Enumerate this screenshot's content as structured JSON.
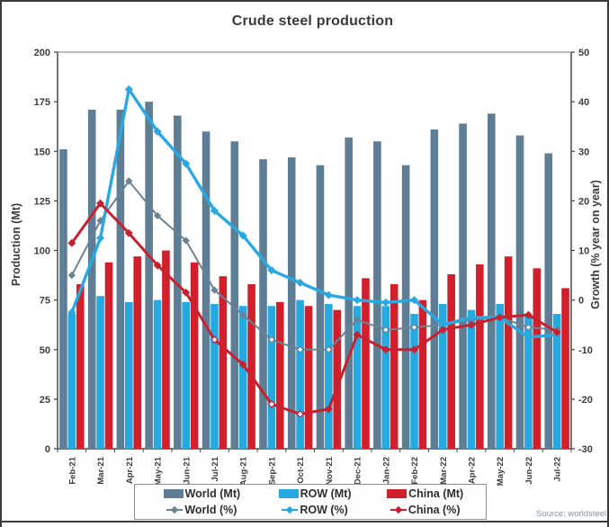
{
  "title": "Crude steel production",
  "source": "Source: worldsteel",
  "chart_data": {
    "type": "bar+line",
    "title": "Crude steel production",
    "categories": [
      "Feb-21",
      "Mar-21",
      "Apr-21",
      "May-21",
      "Jun-21",
      "Jul-21",
      "Aug-21",
      "Sep-21",
      "Oct-21",
      "Nov-21",
      "Dec-21",
      "Jan-22",
      "Feb-22",
      "Mar-22",
      "Apr-22",
      "May-22",
      "Jun-22",
      "Jul-22"
    ],
    "bar_series": [
      {
        "name": "World (Mt)",
        "color": "#5e7e96",
        "values": [
          151,
          171,
          171,
          175,
          168,
          160,
          155,
          146,
          147,
          143,
          157,
          155,
          143,
          161,
          164,
          169,
          158,
          149
        ]
      },
      {
        "name": "ROW (Mt)",
        "color": "#24a9e1",
        "values": [
          68,
          77,
          74,
          75,
          74,
          73,
          72,
          72,
          75,
          73,
          72,
          72,
          68,
          73,
          70,
          73,
          67,
          68
        ]
      },
      {
        "name": "China (Mt)",
        "color": "#d1202b",
        "values": [
          83,
          94,
          97,
          100,
          94,
          87,
          83,
          74,
          72,
          70,
          86,
          83,
          75,
          88,
          93,
          97,
          91,
          81
        ]
      }
    ],
    "line_series": [
      {
        "name": "World (%)",
        "color": "#6b8393",
        "width": 2,
        "marker": 3.3,
        "values": [
          5,
          16,
          24,
          17,
          12,
          2,
          -3,
          -8,
          -10,
          -10,
          -4,
          -6,
          -5.5,
          -5,
          -4,
          -3.5,
          -5.5,
          -6
        ],
        "open_markers": [
          7,
          8,
          9,
          11,
          12,
          13,
          16
        ]
      },
      {
        "name": "ROW (%)",
        "color": "#29a9e1",
        "width": 3.4,
        "marker": 3.7,
        "values": [
          -2.5,
          12.5,
          42.5,
          34,
          27.5,
          18,
          13,
          6,
          3.5,
          1,
          0,
          -0.5,
          0,
          -5,
          -3.5,
          -3.5,
          -7.5,
          -7
        ],
        "open_markers": []
      },
      {
        "name": "China (%)",
        "color": "#c8202e",
        "width": 3,
        "marker": 3.6,
        "values": [
          11.5,
          19.5,
          13.5,
          7,
          1.5,
          -8,
          -13,
          -21,
          -23,
          -22,
          -7,
          -10,
          -10,
          -6,
          -5,
          -3.5,
          -3,
          -6.5
        ],
        "open_markers": [
          5,
          7,
          8
        ]
      }
    ],
    "axis_left": {
      "title": "Production (Mt)",
      "ticks": [
        0,
        25,
        50,
        75,
        100,
        125,
        150,
        175,
        200
      ],
      "range": [
        0,
        200
      ]
    },
    "axis_right": {
      "title": "Growth (% year on year)",
      "ticks": [
        -30,
        -20,
        -10,
        0,
        10,
        20,
        30,
        40,
        50
      ],
      "range": [
        -30,
        50
      ]
    },
    "grid": false,
    "legend_position": "bottom"
  }
}
